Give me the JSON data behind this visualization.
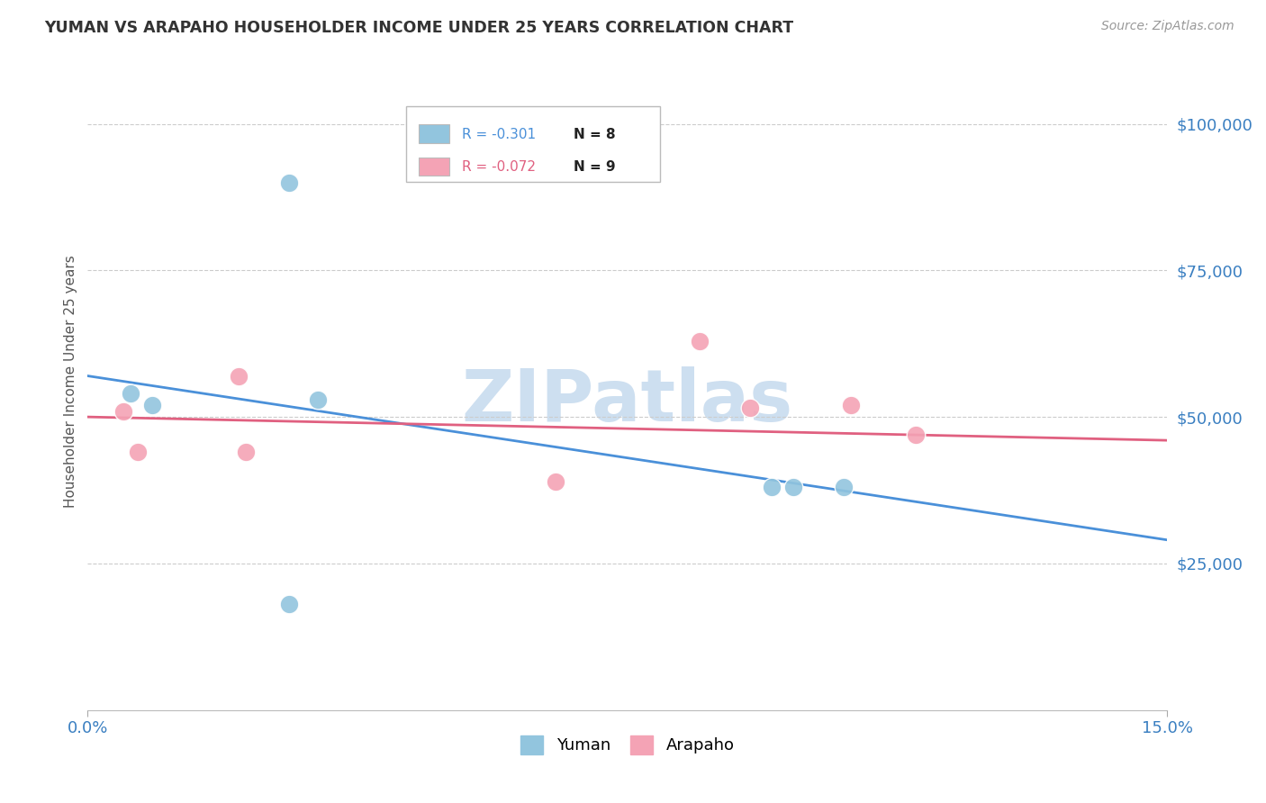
{
  "title": "YUMAN VS ARAPAHO HOUSEHOLDER INCOME UNDER 25 YEARS CORRELATION CHART",
  "source": "Source: ZipAtlas.com",
  "ylabel": "Householder Income Under 25 years",
  "ymin": 0,
  "ymax": 112000,
  "xmin": 0.0,
  "xmax": 0.15,
  "yticks": [
    25000,
    50000,
    75000,
    100000
  ],
  "ytick_labels": [
    "$25,000",
    "$50,000",
    "$75,000",
    "$100,000"
  ],
  "xticks": [
    0.0,
    0.15
  ],
  "xtick_labels": [
    "0.0%",
    "15.0%"
  ],
  "yuman_R": "-0.301",
  "yuman_N": "8",
  "arapaho_R": "-0.072",
  "arapaho_N": "9",
  "yuman_color": "#92c5de",
  "arapaho_color": "#f4a3b5",
  "yuman_line_color": "#4a90d9",
  "arapaho_line_color": "#e06080",
  "watermark_color": "#cddff0",
  "background_color": "#ffffff",
  "grid_color": "#cccccc",
  "tick_label_color": "#3a7fc1",
  "title_color": "#333333",
  "source_color": "#999999",
  "ylabel_color": "#555555",
  "yuman_x": [
    0.006,
    0.009,
    0.028,
    0.095,
    0.098,
    0.105,
    0.028,
    0.032
  ],
  "yuman_y": [
    54000,
    52000,
    90000,
    38000,
    38000,
    38000,
    18000,
    53000
  ],
  "arapaho_x": [
    0.005,
    0.007,
    0.021,
    0.022,
    0.065,
    0.085,
    0.092,
    0.106,
    0.115
  ],
  "arapaho_y": [
    51000,
    44000,
    57000,
    44000,
    39000,
    63000,
    51500,
    52000,
    47000
  ],
  "yuman_trendline_x": [
    0.0,
    0.15
  ],
  "yuman_trendline_y": [
    57000,
    29000
  ],
  "arapaho_trendline_x": [
    0.0,
    0.15
  ],
  "arapaho_trendline_y": [
    50000,
    46000
  ]
}
